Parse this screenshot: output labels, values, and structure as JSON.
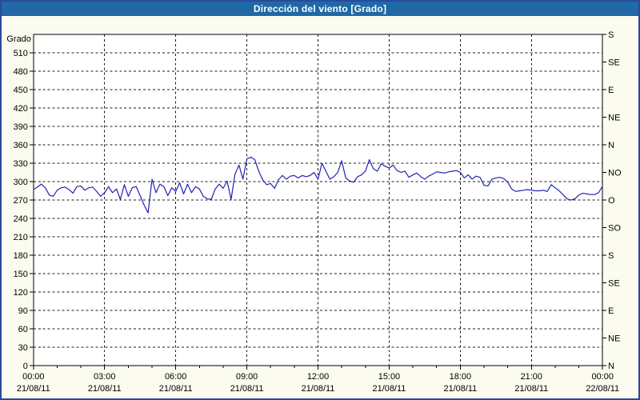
{
  "window": {
    "title": "Dirección del viento [Grado]"
  },
  "colors": {
    "titlebar_bg": "#2069a5",
    "titlebar_text": "#ffffff",
    "frame_border": "#2a4a9e",
    "page_bg": "#fbfbef",
    "plot_bg": "#ffffff",
    "line": "#2222b0",
    "grid": "#1a1a1a",
    "axis": "#000000",
    "text": "#000000"
  },
  "chart_data": {
    "type": "line",
    "title": "Dirección del viento [Grado]",
    "xlabel": "",
    "ylabel": "Grado",
    "ylim": [
      0,
      540
    ],
    "x_range_hours": [
      0,
      24
    ],
    "grid": "dashed",
    "legend": "none",
    "y_grid_interval": 30,
    "y_tick_labels_left": [
      "0",
      "30",
      "60",
      "90",
      "120",
      "150",
      "180",
      "210",
      "240",
      "270",
      "300",
      "330",
      "360",
      "390",
      "420",
      "450",
      "480",
      "510"
    ],
    "right_axis": {
      "tick_interval_degrees": 45,
      "labels_bottom_to_top": [
        "N",
        "NE",
        "E",
        "SE",
        "S",
        "SO",
        "O",
        "NO",
        "N",
        "NE",
        "E",
        "SE",
        "S"
      ]
    },
    "x_minor_tick_hours": 1,
    "x_major_tick_hours": 3,
    "x_ticks": [
      {
        "time": "00:00",
        "date": "21/08/11"
      },
      {
        "time": "03:00",
        "date": "21/08/11"
      },
      {
        "time": "06:00",
        "date": "21/08/11"
      },
      {
        "time": "09:00",
        "date": "21/08/11"
      },
      {
        "time": "12:00",
        "date": "21/08/11"
      },
      {
        "time": "15:00",
        "date": "21/08/11"
      },
      {
        "time": "18:00",
        "date": "21/08/11"
      },
      {
        "time": "21:00",
        "date": "21/08/11"
      },
      {
        "time": "00:00",
        "date": "22/08/11"
      }
    ],
    "sample_interval_minutes": 10,
    "series": [
      {
        "name": "Dirección del viento",
        "unit": "Grado",
        "values": [
          287,
          291,
          296,
          290,
          278,
          276,
          286,
          290,
          291,
          287,
          281,
          292,
          293,
          286,
          290,
          291,
          284,
          276,
          282,
          292,
          282,
          288,
          271,
          295,
          276,
          290,
          292,
          277,
          262,
          249,
          304,
          282,
          296,
          292,
          277,
          290,
          284,
          298,
          280,
          296,
          282,
          292,
          288,
          276,
          272,
          271,
          288,
          296,
          289,
          301,
          271,
          312,
          327,
          304,
          337,
          340,
          336,
          317,
          303,
          295,
          297,
          289,
          303,
          310,
          304,
          309,
          310,
          306,
          310,
          308,
          310,
          315,
          304,
          330,
          317,
          304,
          308,
          315,
          334,
          306,
          301,
          299,
          308,
          311,
          317,
          336,
          321,
          317,
          329,
          325,
          322,
          327,
          318,
          315,
          317,
          307,
          311,
          314,
          308,
          304,
          309,
          312,
          316,
          315,
          314,
          316,
          317,
          318,
          315,
          306,
          311,
          304,
          309,
          307,
          294,
          293,
          304,
          306,
          307,
          305,
          299,
          288,
          284,
          285,
          286,
          287,
          286,
          285,
          285,
          286,
          284,
          295,
          290,
          285,
          279,
          272,
          270,
          272,
          278,
          281,
          280,
          279,
          279,
          282,
          293
        ]
      }
    ]
  }
}
